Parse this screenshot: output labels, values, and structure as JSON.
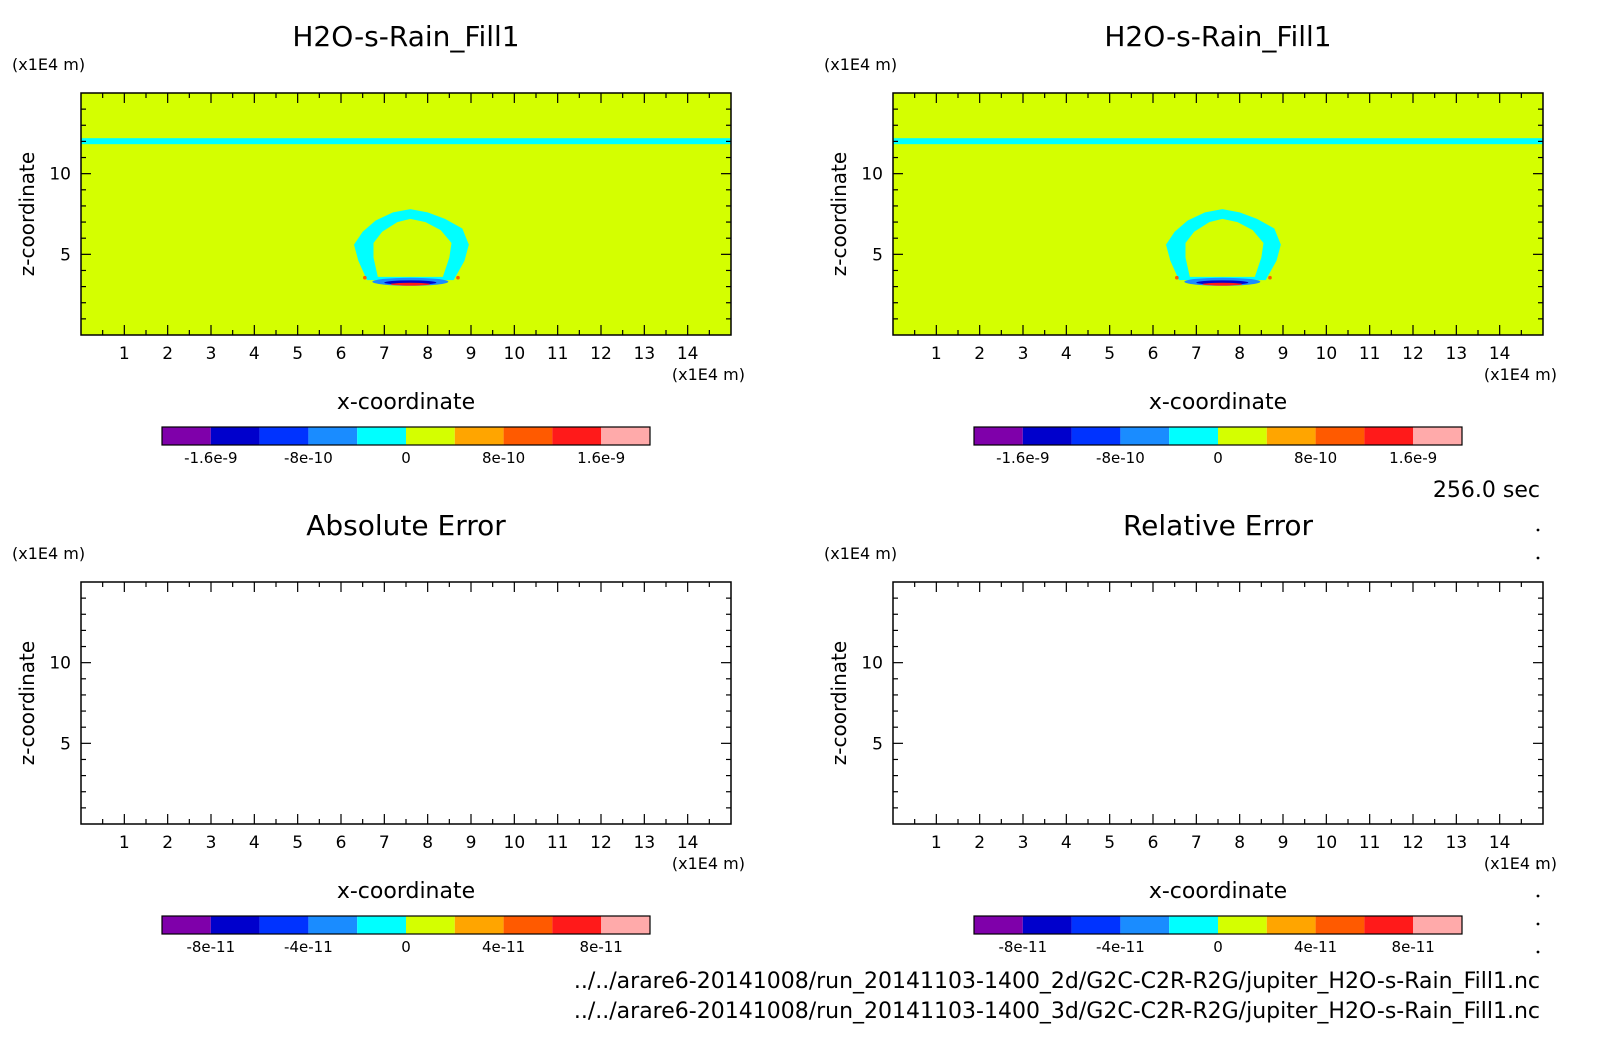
{
  "colors": {
    "bg": "#d4ff00",
    "levels": [
      "#7f00aa",
      "#0000cc",
      "#0033ff",
      "#1a8cff",
      "#00ffff",
      "#d4ff00",
      "#ffa500",
      "#ff5a00",
      "#ff1a1a",
      "#ffaaaa"
    ]
  },
  "chart_data": [
    {
      "type": "heatmap",
      "title": "H2O-s-Rain_Fill1",
      "xlabel": "x-coordinate",
      "ylabel": "z-coordinate",
      "x_unit": "(x1E4 m)",
      "y_unit": "(x1E4 m)",
      "xlim": [
        0,
        15
      ],
      "ylim": [
        0,
        15
      ],
      "xticks": [
        "1",
        "2",
        "3",
        "4",
        "5",
        "6",
        "7",
        "8",
        "9",
        "10",
        "11",
        "12",
        "13",
        "14"
      ],
      "yticks": [
        "5",
        "10"
      ],
      "filled": true,
      "colorbar_ticks": [
        "-1.6e-9",
        "-8e-10",
        "0",
        "8e-10",
        "1.6e-9"
      ]
    },
    {
      "type": "heatmap",
      "title": "H2O-s-Rain_Fill1",
      "xlabel": "x-coordinate",
      "ylabel": "z-coordinate",
      "x_unit": "(x1E4 m)",
      "y_unit": "(x1E4 m)",
      "xlim": [
        0,
        15
      ],
      "ylim": [
        0,
        15
      ],
      "xticks": [
        "1",
        "2",
        "3",
        "4",
        "5",
        "6",
        "7",
        "8",
        "9",
        "10",
        "11",
        "12",
        "13",
        "14"
      ],
      "yticks": [
        "5",
        "10"
      ],
      "filled": true,
      "colorbar_ticks": [
        "-1.6e-9",
        "-8e-10",
        "0",
        "8e-10",
        "1.6e-9"
      ]
    },
    {
      "type": "heatmap",
      "title": "Absolute Error",
      "xlabel": "x-coordinate",
      "ylabel": "z-coordinate",
      "x_unit": "(x1E4 m)",
      "y_unit": "(x1E4 m)",
      "xlim": [
        0,
        15
      ],
      "ylim": [
        0,
        15
      ],
      "xticks": [
        "1",
        "2",
        "3",
        "4",
        "5",
        "6",
        "7",
        "8",
        "9",
        "10",
        "11",
        "12",
        "13",
        "14"
      ],
      "yticks": [
        "5",
        "10"
      ],
      "filled": false,
      "colorbar_ticks": [
        "-8e-11",
        "-4e-11",
        "0",
        "4e-11",
        "8e-11"
      ]
    },
    {
      "type": "heatmap",
      "title": "Relative Error",
      "xlabel": "x-coordinate",
      "ylabel": "z-coordinate",
      "x_unit": "(x1E4 m)",
      "y_unit": "(x1E4 m)",
      "xlim": [
        0,
        15
      ],
      "ylim": [
        0,
        15
      ],
      "xticks": [
        "1",
        "2",
        "3",
        "4",
        "5",
        "6",
        "7",
        "8",
        "9",
        "10",
        "11",
        "12",
        "13",
        "14"
      ],
      "yticks": [
        "5",
        "10"
      ],
      "filled": false,
      "colorbar_ticks": [
        "-8e-11",
        "-4e-11",
        "0",
        "4e-11",
        "8e-11"
      ]
    }
  ],
  "time_label": "256.0 sec",
  "file_paths": [
    "../../arare6-20141008/run_20141103-1400_2d/G2C-C2R-R2G/jupiter_H2O-s-Rain_Fill1.nc",
    "../../arare6-20141008/run_20141103-1400_3d/G2C-C2R-R2G/jupiter_H2O-s-Rain_Fill1.nc"
  ]
}
